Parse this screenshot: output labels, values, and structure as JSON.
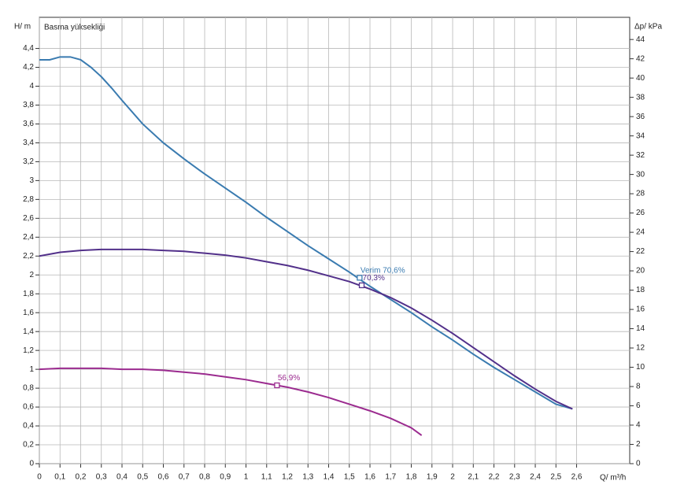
{
  "chart_data": {
    "type": "line",
    "y_label": "H/ m",
    "plot_label": "Basma yüksekliği",
    "y2_label": "Δp/ kPa",
    "x_label": "Q/ m³/h",
    "xlim": [
      0,
      2.857
    ],
    "ylim": [
      0,
      4.73
    ],
    "y2lim": [
      0,
      46.3
    ],
    "grid": true,
    "xticks": [
      0,
      {
        "value": 0.1,
        "label": "0,1"
      },
      {
        "value": 0.2,
        "label": "0,2"
      },
      {
        "value": 0.3,
        "label": "0,3"
      },
      {
        "value": 0.4,
        "label": "0,4"
      },
      {
        "value": 0.5,
        "label": "0,5"
      },
      {
        "value": 0.6,
        "label": "0,6"
      },
      {
        "value": 0.7,
        "label": "0,7"
      },
      {
        "value": 0.8,
        "label": "0,8"
      },
      {
        "value": 0.9,
        "label": "0,9"
      },
      1,
      {
        "value": 1.1,
        "label": "1,1"
      },
      {
        "value": 1.2,
        "label": "1,2"
      },
      {
        "value": 1.3,
        "label": "1,3"
      },
      {
        "value": 1.4,
        "label": "1,4"
      },
      {
        "value": 1.5,
        "label": "1,5"
      },
      {
        "value": 1.6,
        "label": "1,6"
      },
      {
        "value": 1.7,
        "label": "1,7"
      },
      {
        "value": 1.8,
        "label": "1,8"
      },
      {
        "value": 1.9,
        "label": "1,9"
      },
      2,
      {
        "value": 2.1,
        "label": "2,1"
      },
      {
        "value": 2.2,
        "label": "2,2"
      },
      {
        "value": 2.3,
        "label": "2,3"
      },
      {
        "value": 2.4,
        "label": "2,4"
      },
      {
        "value": 2.5,
        "label": "2,5"
      },
      {
        "value": 2.6,
        "label": "2,6"
      }
    ],
    "yticks": [
      0,
      {
        "value": 0.2,
        "label": "0,2"
      },
      {
        "value": 0.4,
        "label": "0,4"
      },
      {
        "value": 0.6,
        "label": "0,6"
      },
      {
        "value": 0.8,
        "label": "0,8"
      },
      1,
      {
        "value": 1.2,
        "label": "1,2"
      },
      {
        "value": 1.4,
        "label": "1,4"
      },
      {
        "value": 1.6,
        "label": "1,6"
      },
      {
        "value": 1.8,
        "label": "1,8"
      },
      2,
      {
        "value": 2.2,
        "label": "2,2"
      },
      {
        "value": 2.4,
        "label": "2,4"
      },
      {
        "value": 2.6,
        "label": "2,6"
      },
      {
        "value": 2.8,
        "label": "2,8"
      },
      3,
      {
        "value": 3.2,
        "label": "3,2"
      },
      {
        "value": 3.4,
        "label": "3,4"
      },
      {
        "value": 3.6,
        "label": "3,6"
      },
      {
        "value": 3.8,
        "label": "3,8"
      },
      4,
      {
        "value": 4.2,
        "label": "4,2"
      },
      {
        "value": 4.4,
        "label": "4,4"
      }
    ],
    "y2ticks": [
      0,
      2,
      4,
      6,
      8,
      10,
      12,
      14,
      16,
      18,
      20,
      22,
      24,
      26,
      28,
      30,
      32,
      34,
      36,
      38,
      40,
      42,
      44
    ],
    "series": [
      {
        "color": "#3a7bb0",
        "x": [
          0,
          0.05,
          0.1,
          0.15,
          0.2,
          0.25,
          0.3,
          0.35,
          0.4,
          0.5,
          0.6,
          0.7,
          0.8,
          0.9,
          1.0,
          1.1,
          1.2,
          1.3,
          1.4,
          1.5,
          1.6,
          1.7,
          1.8,
          1.9,
          2.0,
          2.1,
          2.2,
          2.3,
          2.4,
          2.5,
          2.58
        ],
        "values": [
          4.28,
          4.28,
          4.31,
          4.31,
          4.28,
          4.2,
          4.1,
          3.98,
          3.85,
          3.6,
          3.4,
          3.23,
          3.07,
          2.92,
          2.77,
          2.61,
          2.46,
          2.31,
          2.17,
          2.03,
          1.88,
          1.74,
          1.6,
          1.45,
          1.31,
          1.16,
          1.02,
          0.89,
          0.76,
          0.63,
          0.58
        ],
        "point": {
          "x": 1.55,
          "y": 1.97,
          "label": "Verim 70,6%"
        }
      },
      {
        "color": "#52308a",
        "x": [
          0,
          0.1,
          0.2,
          0.3,
          0.4,
          0.5,
          0.6,
          0.7,
          0.8,
          0.9,
          1.0,
          1.1,
          1.2,
          1.3,
          1.4,
          1.5,
          1.6,
          1.7,
          1.8,
          1.9,
          2.0,
          2.1,
          2.2,
          2.3,
          2.4,
          2.5,
          2.58
        ],
        "values": [
          2.2,
          2.24,
          2.26,
          2.27,
          2.27,
          2.27,
          2.26,
          2.25,
          2.23,
          2.21,
          2.18,
          2.14,
          2.1,
          2.05,
          1.99,
          1.93,
          1.85,
          1.76,
          1.65,
          1.52,
          1.38,
          1.23,
          1.08,
          0.93,
          0.79,
          0.66,
          0.58
        ],
        "point": {
          "x": 1.56,
          "y": 1.89,
          "label": "70,3%"
        }
      },
      {
        "color": "#9b2b8f",
        "x": [
          0,
          0.1,
          0.2,
          0.3,
          0.4,
          0.5,
          0.6,
          0.7,
          0.8,
          0.9,
          1.0,
          1.1,
          1.2,
          1.3,
          1.4,
          1.5,
          1.6,
          1.7,
          1.8,
          1.85
        ],
        "values": [
          1.0,
          1.01,
          1.01,
          1.01,
          1.0,
          1.0,
          0.99,
          0.97,
          0.95,
          0.92,
          0.89,
          0.85,
          0.81,
          0.76,
          0.7,
          0.63,
          0.56,
          0.48,
          0.38,
          0.3
        ],
        "point": {
          "x": 1.15,
          "y": 0.83,
          "label": "56,9%"
        }
      }
    ]
  }
}
